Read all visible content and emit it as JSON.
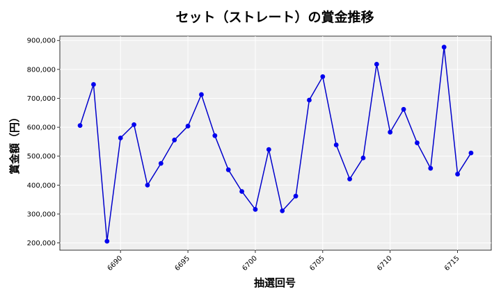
{
  "chart_data": {
    "type": "line",
    "title": "セット（ストレート）の賞金推移",
    "xlabel": "抽選回号",
    "ylabel": "賞金額（円）",
    "xlim": [
      6685.5,
      6717.5
    ],
    "ylim": [
      175000,
      915000
    ],
    "xticks": [
      6690,
      6695,
      6700,
      6705,
      6710,
      6715
    ],
    "yticks": [
      200000,
      300000,
      400000,
      500000,
      600000,
      700000,
      800000,
      900000
    ],
    "ytick_labels": [
      "200,000",
      "300,000",
      "400,000",
      "500,000",
      "600,000",
      "700,000",
      "800,000",
      "900,000"
    ],
    "grid": true,
    "background": "#efefef",
    "line_color": "#0000cc",
    "marker_color": "#0000ee",
    "series": [
      {
        "x": [
          6687,
          6688,
          6689,
          6690,
          6691,
          6692,
          6693,
          6694,
          6695,
          6696,
          6697,
          6698,
          6699,
          6700,
          6701,
          6702,
          6703,
          6704,
          6705,
          6706,
          6707,
          6708,
          6709,
          6710,
          6711,
          6712,
          6713,
          6714,
          6715,
          6716
        ],
        "values": [
          606000,
          748000,
          206000,
          563000,
          609000,
          400000,
          475000,
          556000,
          604000,
          713000,
          571000,
          453000,
          378000,
          316000,
          523000,
          311000,
          362000,
          694000,
          775000,
          539000,
          421000,
          494000,
          818000,
          583000,
          662000,
          546000,
          458000,
          877000,
          438000,
          511000
        ]
      }
    ]
  }
}
